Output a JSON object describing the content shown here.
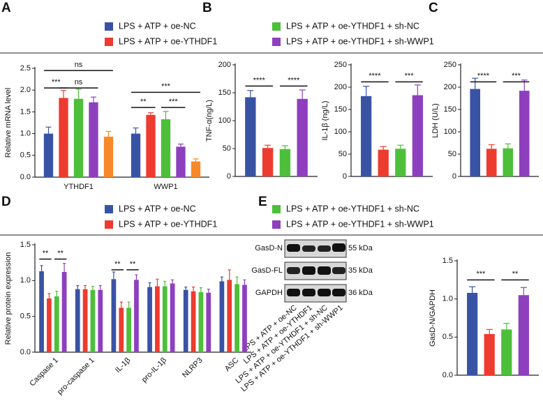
{
  "panels": [
    "A",
    "B",
    "C",
    "D",
    "E"
  ],
  "blot": {
    "rows": [
      {
        "label": "GasD-N",
        "marker": "55 kDa"
      },
      {
        "label": "GasD-FL",
        "marker": "35 kDa"
      },
      {
        "label": "GAPDH",
        "marker": "36 kDa"
      }
    ],
    "lanes": [
      "LPS + ATP + oe-NC",
      "LPS + ATP + oe-YTHDF1",
      "LPS + ATP + oe-YTHDF1 + sh-NC",
      "LPS + ATP + oe-YTHDF1 + sh-WWP1"
    ]
  },
  "chart_data": [
    {
      "type": "bar",
      "ylabel": "Relative mRNA level",
      "categories": [
        "YTHDF1",
        "WWP1"
      ],
      "series": [
        {
          "name": "LPS + ATP + oe-NC",
          "color": "#3953a4",
          "values": [
            1.0,
            1.0
          ],
          "errors": [
            0.15,
            0.13
          ]
        },
        {
          "name": "LPS + ATP + oe-YTHDF1",
          "color": "#ee3b2f",
          "values": [
            1.82,
            1.43
          ],
          "errors": [
            0.17,
            0.05
          ]
        },
        {
          "name": "LPS + ATP + oe-YTHDF1 + sh-NC",
          "color": "#4dbf3a",
          "values": [
            1.8,
            1.33
          ],
          "errors": [
            0.22,
            0.18
          ]
        },
        {
          "name": "LPS + ATP + oe-YTHDF1 + sh-WWP1",
          "color": "#8e3fbe",
          "values": [
            1.72,
            0.7
          ],
          "errors": [
            0.12,
            0.06
          ]
        },
        {
          "color": "#f7892a",
          "values": [
            0.93,
            0.36
          ],
          "errors": [
            0.12,
            0.06
          ]
        }
      ],
      "ylim": [
        0,
        2.5
      ],
      "yticks": [
        {
          "value": 0,
          "label": "0.0"
        },
        0.5,
        {
          "value": 1,
          "label": "1.0"
        },
        1.5,
        {
          "value": 2,
          "label": "2.0"
        },
        2.5
      ],
      "annotations": [
        "***",
        "ns",
        "ns",
        "**",
        "***",
        "***"
      ]
    },
    {
      "type": "bar",
      "ylabel": "TNF-α(ng/L)",
      "series": [
        {
          "color": "#3953a4",
          "values": [
            142
          ],
          "errors": [
            12
          ]
        },
        {
          "color": "#ee3b2f",
          "values": [
            51
          ],
          "errors": [
            5
          ]
        },
        {
          "color": "#4dbf3a",
          "values": [
            49
          ],
          "errors": [
            6
          ]
        },
        {
          "color": "#8e3fbe",
          "values": [
            139
          ],
          "errors": [
            16
          ]
        }
      ],
      "ylim": [
        0,
        200
      ],
      "yticks": [
        0,
        50,
        100,
        150,
        200
      ],
      "annotations": [
        "****",
        "****"
      ]
    },
    {
      "type": "bar",
      "ylabel": "IL-1β (ng/L)",
      "series": [
        {
          "color": "#3953a4",
          "values": [
            180
          ],
          "errors": [
            22
          ]
        },
        {
          "color": "#ee3b2f",
          "values": [
            60
          ],
          "errors": [
            7
          ]
        },
        {
          "color": "#4dbf3a",
          "values": [
            62
          ],
          "errors": [
            8
          ]
        },
        {
          "color": "#8e3fbe",
          "values": [
            182
          ],
          "errors": [
            23
          ]
        }
      ],
      "ylim": [
        0,
        250
      ],
      "yticks": [
        0,
        50,
        100,
        150,
        200,
        250
      ],
      "annotations": [
        "****",
        "***"
      ]
    },
    {
      "type": "bar",
      "ylabel": "LDH (U/L)",
      "series": [
        {
          "color": "#3953a4",
          "values": [
            196
          ],
          "errors": [
            24
          ]
        },
        {
          "color": "#ee3b2f",
          "values": [
            62
          ],
          "errors": [
            9
          ]
        },
        {
          "color": "#4dbf3a",
          "values": [
            63
          ],
          "errors": [
            10
          ]
        },
        {
          "color": "#8e3fbe",
          "values": [
            192
          ],
          "errors": [
            24
          ]
        }
      ],
      "ylim": [
        0,
        250
      ],
      "yticks": [
        0,
        50,
        100,
        150,
        200,
        250
      ],
      "annotations": [
        "****",
        "***"
      ]
    },
    {
      "type": "bar",
      "ylabel": "Relative protein expression",
      "categories": [
        "Caspase 1",
        "pro-caspase 1",
        "IL-1β",
        "pro-IL-1β",
        "NLRP3",
        "ASC"
      ],
      "series": [
        {
          "name": "LPS + ATP + oe-NC",
          "color": "#3953a4",
          "values": [
            1.13,
            0.88,
            1.02,
            0.91,
            0.87,
            0.99
          ],
          "errors": [
            0.08,
            0.05,
            0.1,
            0.06,
            0.04,
            0.06
          ]
        },
        {
          "name": "LPS + ATP + oe-YTHDF1",
          "color": "#ee3b2f",
          "values": [
            0.75,
            0.88,
            0.62,
            0.92,
            0.85,
            1.01
          ],
          "errors": [
            0.07,
            0.05,
            0.08,
            0.1,
            0.06,
            0.14
          ]
        },
        {
          "name": "LPS + ATP + oe-YTHDF1 + sh-NC",
          "color": "#4dbf3a",
          "values": [
            0.78,
            0.87,
            0.62,
            0.92,
            0.84,
            0.95
          ],
          "errors": [
            0.07,
            0.05,
            0.08,
            0.07,
            0.06,
            0.1
          ]
        },
        {
          "name": "LPS + ATP + oe-YTHDF1 + sh-WWP1",
          "color": "#8e3fbe",
          "values": [
            1.12,
            0.87,
            1.01,
            0.96,
            0.83,
            0.94
          ],
          "errors": [
            0.12,
            0.06,
            0.07,
            0.05,
            0.05,
            0.07
          ]
        }
      ],
      "ylim": [
        0,
        1.5
      ],
      "yticks": [
        {
          "value": 0,
          "label": "0.0"
        },
        0.5,
        {
          "value": 1,
          "label": "1.0"
        },
        1.5
      ],
      "annotations": [
        "**",
        "**",
        "**",
        "**"
      ]
    },
    {
      "type": "bar",
      "ylabel": "GasD-N/GAPDH",
      "series": [
        {
          "color": "#3953a4",
          "values": [
            1.08
          ],
          "errors": [
            0.08
          ]
        },
        {
          "color": "#ee3b2f",
          "values": [
            0.54
          ],
          "errors": [
            0.06
          ]
        },
        {
          "color": "#4dbf3a",
          "values": [
            0.6
          ],
          "errors": [
            0.08
          ]
        },
        {
          "color": "#8e3fbe",
          "values": [
            1.05
          ],
          "errors": [
            0.1
          ]
        }
      ],
      "ylim": [
        0,
        1.5
      ],
      "yticks": [
        {
          "value": 0,
          "label": "0.0"
        },
        0.5,
        {
          "value": 1,
          "label": "1.0"
        },
        1.5
      ],
      "annotations": [
        "***",
        "**"
      ]
    }
  ]
}
